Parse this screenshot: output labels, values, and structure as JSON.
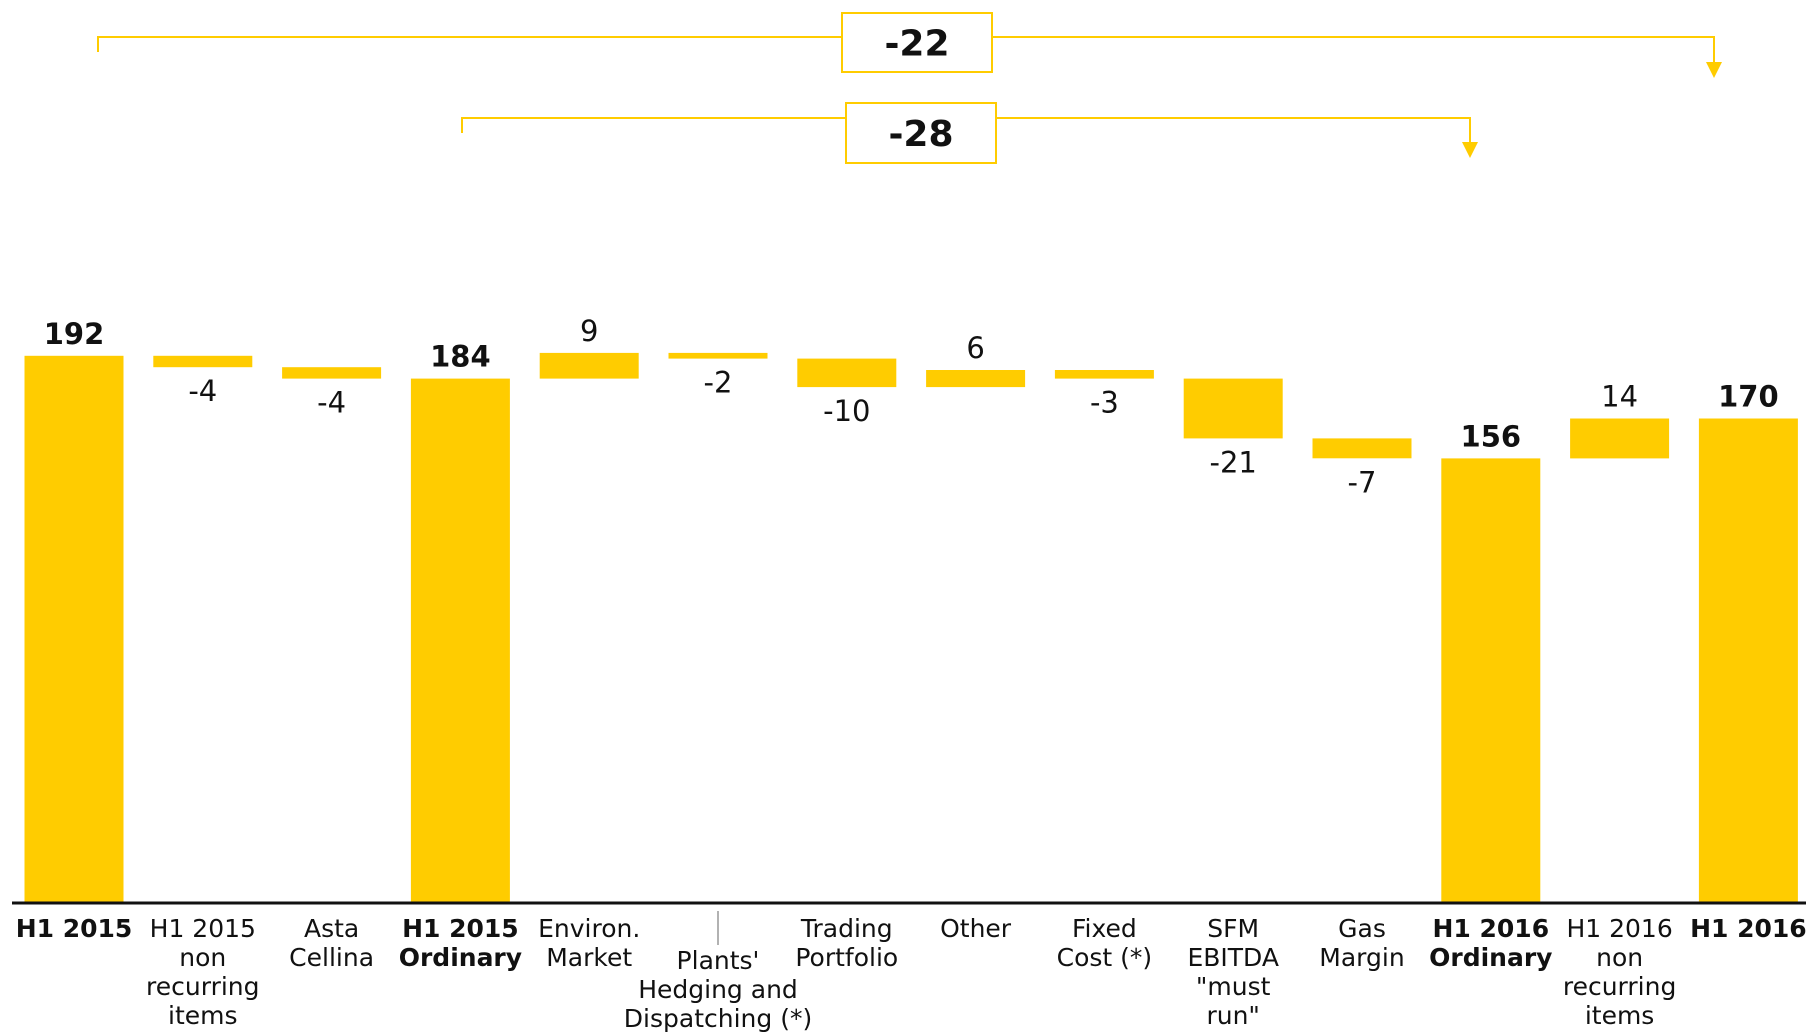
{
  "chart_data": {
    "type": "bar",
    "variant": "waterfall",
    "bar_color": "#FFCC00",
    "categories": [
      [
        "H1 2015"
      ],
      [
        "H1 2015",
        "non",
        "recurring",
        "items"
      ],
      [
        "Asta",
        "Cellina"
      ],
      [
        "H1 2015",
        "Ordinary"
      ],
      [
        "Environ.",
        "Market"
      ],
      [
        "Plants'",
        "Hedging and",
        "Dispatching (*)"
      ],
      [
        "Trading",
        "Portfolio"
      ],
      [
        "Other"
      ],
      [
        "Fixed",
        "Cost (*)"
      ],
      [
        "SFM",
        "EBITDA",
        "\"must",
        "run\""
      ],
      [
        "Gas",
        "Margin"
      ],
      [
        "H1 2016",
        "Ordinary"
      ],
      [
        "H1 2016",
        "non",
        "recurring",
        "items"
      ],
      [
        "H1 2016"
      ]
    ],
    "values": [
      192,
      -4,
      -4,
      184,
      9,
      -2,
      -10,
      6,
      -3,
      -21,
      -7,
      156,
      14,
      170
    ],
    "value_labels": [
      "192",
      "-4",
      "-4",
      "184",
      "9",
      "-2",
      "-10",
      "6",
      "-3",
      "-21",
      "-7",
      "156",
      "14",
      "170"
    ],
    "kinds": [
      "total",
      "delta",
      "delta",
      "total",
      "delta",
      "delta",
      "delta",
      "delta",
      "delta",
      "delta",
      "delta",
      "total",
      "delta",
      "total"
    ],
    "ylim": [
      0,
      200
    ],
    "brackets": [
      {
        "label": "-22",
        "from": 0,
        "to": 13
      },
      {
        "label": "-28",
        "from": 3,
        "to": 11
      }
    ]
  }
}
